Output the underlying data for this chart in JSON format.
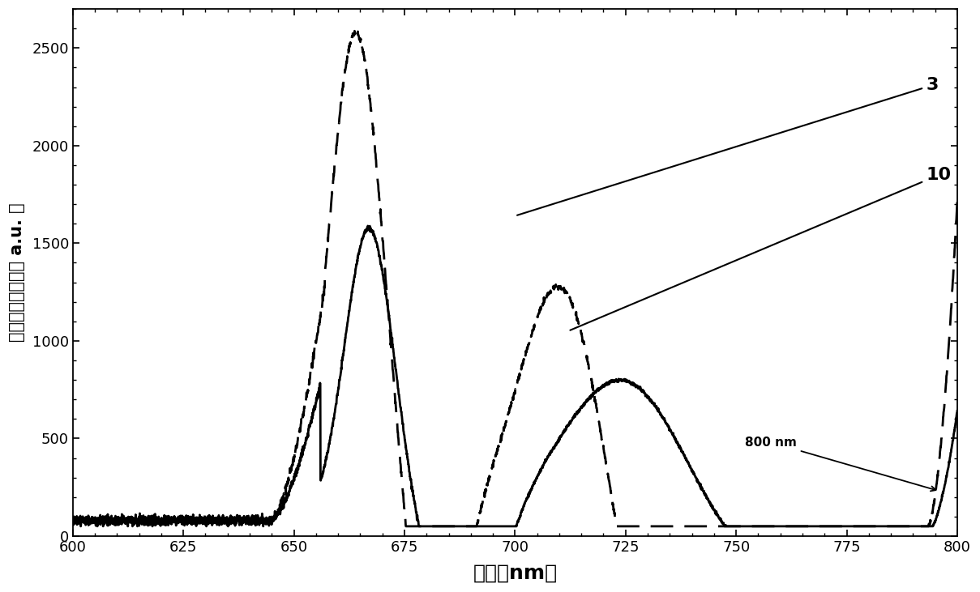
{
  "xlabel": "波长（nm）",
  "ylabel": "双光子荧光强度（ a.u. ）",
  "xlim": [
    600,
    800
  ],
  "ylim": [
    0,
    2700
  ],
  "yticks": [
    0,
    500,
    1000,
    1500,
    2000,
    2500
  ],
  "xticks": [
    600,
    625,
    650,
    675,
    700,
    725,
    750,
    775,
    800
  ],
  "label_3": "3",
  "label_10": "10",
  "annotation_800nm": "800 nm",
  "bg_color": "#ffffff",
  "line_solid_color": "#000000",
  "line_dashed_color": "#000000"
}
